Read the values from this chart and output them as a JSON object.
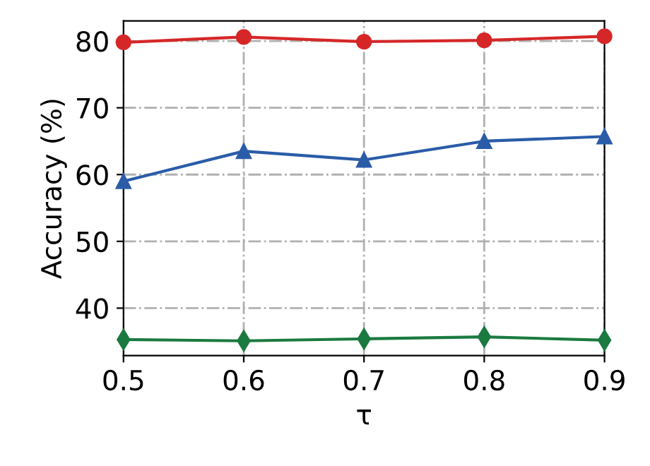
{
  "chart_data": {
    "type": "line",
    "xlabel": "τ",
    "ylabel": "Accuracy (%)",
    "x": [
      0.5,
      0.6,
      0.7,
      0.8,
      0.9
    ],
    "series": [
      {
        "color": "#d62728",
        "marker": "circle",
        "values": [
          79.8,
          80.6,
          79.9,
          80.1,
          80.7
        ]
      },
      {
        "color": "#2a5ca8",
        "marker": "triangle",
        "values": [
          59.0,
          63.5,
          62.2,
          65.0,
          65.7
        ]
      },
      {
        "color": "#1a7a40",
        "marker": "diamond",
        "values": [
          35.3,
          35.1,
          35.4,
          35.7,
          35.2
        ]
      }
    ],
    "xlim": [
      0.5,
      0.9
    ],
    "xticks": [
      0.5,
      0.6,
      0.7,
      0.8,
      0.9
    ],
    "ylim": [
      32.9,
      83.0
    ],
    "yticks": [
      40,
      50,
      60,
      70,
      80
    ],
    "grid": true,
    "line_style": "solid"
  }
}
